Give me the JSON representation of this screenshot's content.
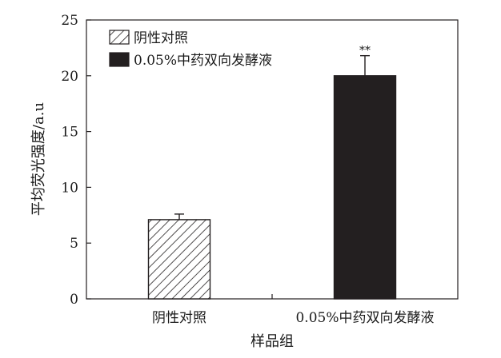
{
  "chart_data": {
    "type": "bar",
    "categories": [
      "阴性对照",
      "0.05%中药双向发酵液"
    ],
    "values": [
      7.1,
      20.0
    ],
    "errors": [
      0.5,
      1.8
    ],
    "significance": [
      "",
      "**"
    ],
    "xlabel": "样品组",
    "ylabel": "平均荧光强度/a.u",
    "ylim": [
      0,
      25
    ],
    "yticks": [
      0,
      5,
      10,
      15,
      20,
      25
    ],
    "legend": {
      "placement": "top-left",
      "entries": [
        {
          "name": "阴性对照",
          "style": "hatched"
        },
        {
          "name": "0.05%中药双向发酵液",
          "style": "solid"
        }
      ]
    },
    "colors": {
      "solid_bar": "#231f20",
      "hatch": "#231f20",
      "axis": "#231f20"
    },
    "grid": false
  }
}
